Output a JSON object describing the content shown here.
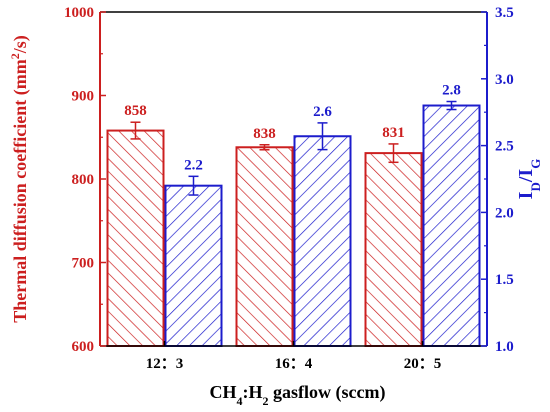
{
  "chart_data": {
    "type": "bar",
    "categories": [
      "12：3",
      "16：4",
      "20：5"
    ],
    "xlabel_parts": {
      "a": "CH",
      "a_sub": "4",
      "sep": ":H",
      "b_sub": "2",
      "rest": " gasflow (sccm)"
    },
    "left_axis": {
      "label_main": "Thermal diffusion coefficient (mm",
      "label_sup": "2",
      "label_end": "/s)",
      "ylim": [
        600,
        1000
      ],
      "ticks": [
        600,
        700,
        800,
        900,
        1000
      ],
      "color": "#cc1f1f"
    },
    "right_axis": {
      "label_main": "I",
      "label_sub1": "D",
      "label_mid": "/I",
      "label_sub2": "G",
      "ylim": [
        1.0,
        3.5
      ],
      "ticks": [
        "1.0",
        "1.5",
        "2.0",
        "2.5",
        "3.0",
        "3.5"
      ],
      "color": "#1c1ccc"
    },
    "series": [
      {
        "axis": "left",
        "values": [
          858,
          838,
          831
        ],
        "errors": [
          10,
          3,
          11
        ],
        "labels": [
          "858",
          "838",
          "831"
        ],
        "color": "#cc1f1f"
      },
      {
        "axis": "right",
        "values": [
          2.2,
          2.57,
          2.8
        ],
        "errors": [
          0.07,
          0.1,
          0.03
        ],
        "labels": [
          "2.2",
          "2.6",
          "2.8"
        ],
        "color": "#1c1ccc"
      }
    ]
  }
}
